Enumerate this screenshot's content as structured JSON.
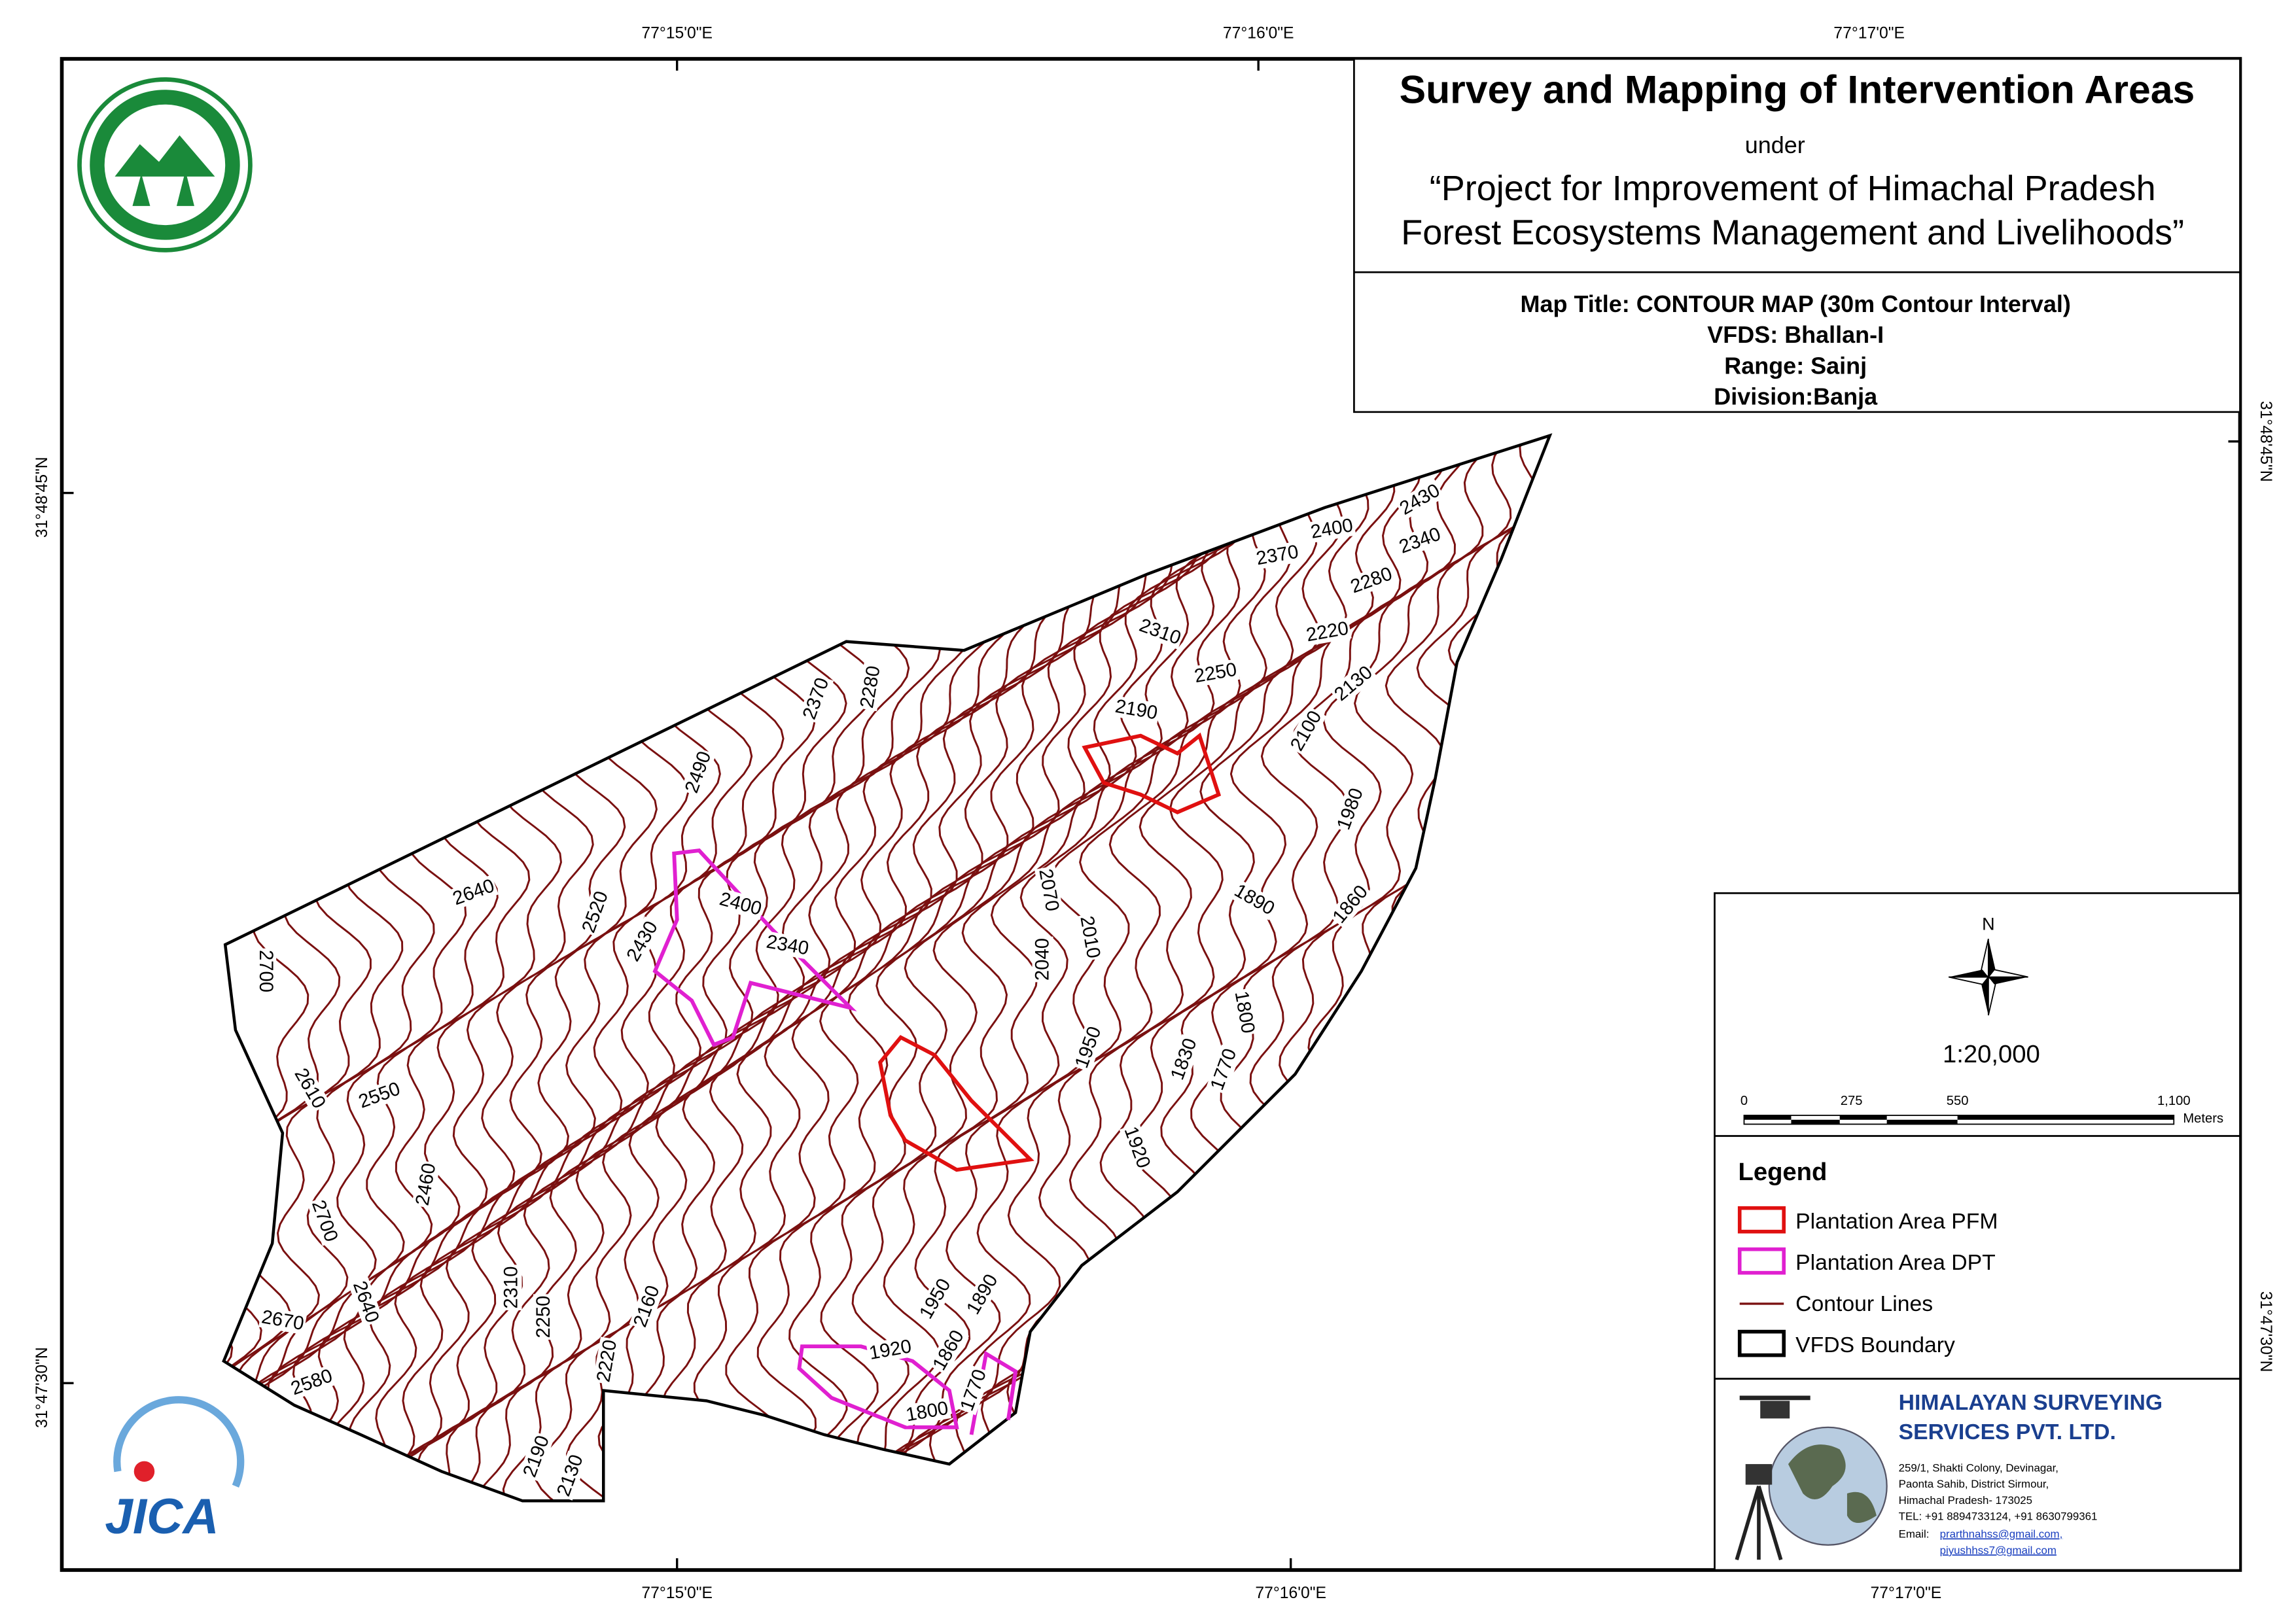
{
  "header": {
    "title": "Survey and Mapping of Intervention Areas",
    "under": "under",
    "project_line1": "“Project for Improvement of Himachal Pradesh",
    "project_line2": "Forest Ecosystems Management and Livelihoods”"
  },
  "map_info": {
    "map_title": "Map Title: CONTOUR MAP (30m Contour Interval)",
    "vfds": "VFDS: Bhallan-I",
    "range": "Range: Sainj",
    "division": "Division:Banja"
  },
  "graticule": {
    "top": [
      "77°15'0\"E",
      "77°16'0\"E",
      "77°17'0\"E"
    ],
    "bottom": [
      "77°15'0\"E",
      "77°16'0\"E",
      "77°17'0\"E"
    ],
    "left": [
      "31°48'45\"N",
      "31°47'30\"N"
    ],
    "right": [
      "31°48'45\"N",
      "31°47'30\"N"
    ]
  },
  "north": "N",
  "scale": {
    "ratio": "1:20,000",
    "bar_labels": [
      "0",
      "275",
      "550",
      "1,100"
    ],
    "unit": "Meters"
  },
  "legend": {
    "title": "Legend",
    "items": [
      "Plantation Area PFM",
      "Plantation Area DPT",
      "Contour Lines",
      "VFDS Boundary"
    ]
  },
  "company": {
    "name_line1": "HIMALAYAN SURVEYING",
    "name_line2": "SERVICES PVT. LTD.",
    "address": [
      "259/1, Shakti Colony, Devinagar,",
      "Paonta Sahib, District Sirmour,",
      "Himachal Pradesh- 173025",
      "TEL: +91 8894733124, +91 8630799361"
    ],
    "email_label": "Email:",
    "emails": [
      "prarthnahss@gmail.com,",
      "piyushhss7@gmail.com"
    ]
  },
  "logos": {
    "jica": "JICA"
  },
  "contour_labels": [
    "2430",
    "2400",
    "2370",
    "2340",
    "2280",
    "2310",
    "2220",
    "2250",
    "2130",
    "2190",
    "2100",
    "1980",
    "1890",
    "1860",
    "1800",
    "1830",
    "1770",
    "1950",
    "1920",
    "2070",
    "2040",
    "2010",
    "2370",
    "2280",
    "2490",
    "2400",
    "2340",
    "2430",
    "2520",
    "2640",
    "2700",
    "2610",
    "2550",
    "2460",
    "2700",
    "2640",
    "2670",
    "2580",
    "2310",
    "2250",
    "2220",
    "2160",
    "2190",
    "2130",
    "1950",
    "1890",
    "1920",
    "1860",
    "1800",
    "1770"
  ]
}
